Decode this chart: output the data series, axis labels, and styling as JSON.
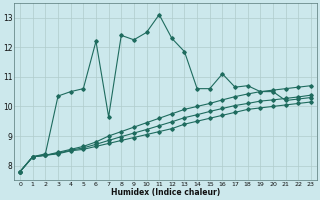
{
  "xlabel": "Humidex (Indice chaleur)",
  "xlim": [
    -0.5,
    23.5
  ],
  "ylim": [
    7.5,
    13.5
  ],
  "xticks": [
    0,
    1,
    2,
    3,
    4,
    5,
    6,
    7,
    8,
    9,
    10,
    11,
    12,
    13,
    14,
    15,
    16,
    17,
    18,
    19,
    20,
    21,
    22,
    23
  ],
  "yticks": [
    8,
    9,
    10,
    11,
    12,
    13
  ],
  "bg_color": "#cce8ec",
  "grid_color": "#b0cccc",
  "line_color": "#1e6b5e",
  "line1_y": [
    7.8,
    8.3,
    8.35,
    8.4,
    8.5,
    8.55,
    8.65,
    8.75,
    8.85,
    8.95,
    9.05,
    9.15,
    9.25,
    9.4,
    9.5,
    9.6,
    9.7,
    9.8,
    9.9,
    9.95,
    10.0,
    10.05,
    10.1,
    10.15
  ],
  "line2_y": [
    7.8,
    8.3,
    8.35,
    8.42,
    8.52,
    8.6,
    8.72,
    8.85,
    8.98,
    9.1,
    9.22,
    9.35,
    9.48,
    9.62,
    9.72,
    9.83,
    9.93,
    10.03,
    10.1,
    10.18,
    10.22,
    10.27,
    10.32,
    10.38
  ],
  "line3_y": [
    7.8,
    8.3,
    8.35,
    8.45,
    8.55,
    8.65,
    8.8,
    9.0,
    9.15,
    9.3,
    9.45,
    9.6,
    9.75,
    9.9,
    10.0,
    10.1,
    10.22,
    10.33,
    10.42,
    10.5,
    10.55,
    10.6,
    10.65,
    10.7
  ],
  "line_jagged_y": [
    7.8,
    8.3,
    8.4,
    10.35,
    10.5,
    10.6,
    12.2,
    9.65,
    12.4,
    12.25,
    12.5,
    13.1,
    12.3,
    11.85,
    10.6,
    10.6,
    11.1,
    10.65,
    10.7,
    10.5,
    10.5,
    10.2,
    10.25,
    10.3
  ]
}
